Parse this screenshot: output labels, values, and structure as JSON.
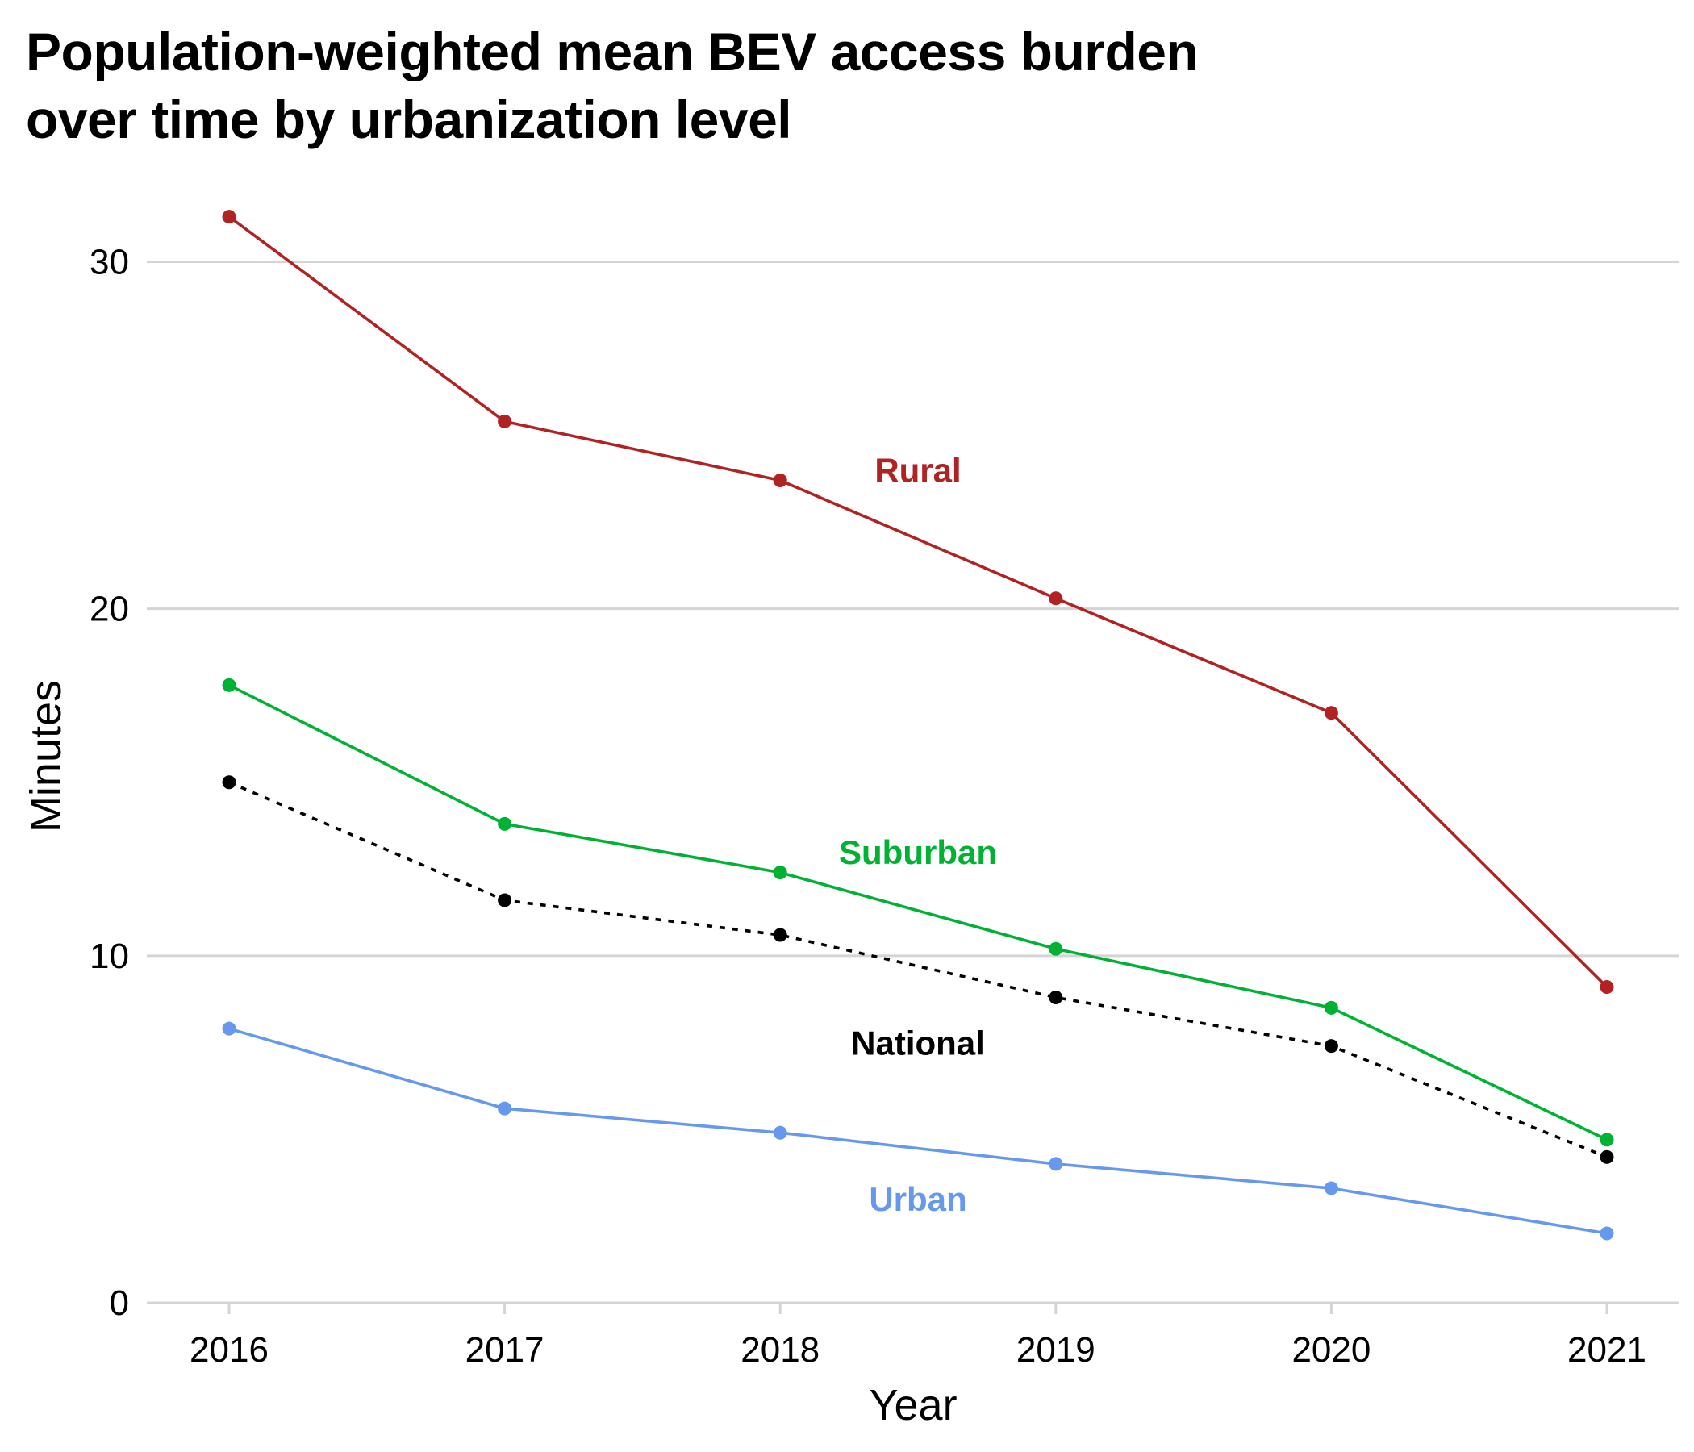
{
  "chart_data": {
    "type": "line",
    "title_lines": [
      "Population-weighted mean BEV access burden",
      "over time by urbanization level"
    ],
    "xlabel": "Year",
    "ylabel": "Minutes",
    "x": [
      2016,
      2017,
      2018,
      2019,
      2020,
      2021
    ],
    "x_tick_labels": [
      "2016",
      "2017",
      "2018",
      "2019",
      "2020",
      "2021"
    ],
    "ylim": [
      0,
      31.5
    ],
    "y_ticks": [
      0,
      10,
      20,
      30
    ],
    "y_tick_labels": [
      "0",
      "10",
      "20",
      "30"
    ],
    "grid": "horizontal",
    "legend": "direct labels inside plot",
    "series": [
      {
        "name": "Rural",
        "color": "#b22222",
        "dash": "solid",
        "values": [
          31.3,
          25.4,
          23.7,
          20.3,
          17.0,
          9.1
        ],
        "label_x": 2018.5,
        "label_y": 24.0
      },
      {
        "name": "Suburban",
        "color": "#00b233",
        "dash": "solid",
        "values": [
          17.8,
          13.8,
          12.4,
          10.2,
          8.5,
          4.7
        ],
        "label_x": 2018.5,
        "label_y": 13.0
      },
      {
        "name": "National",
        "color": "#000000",
        "dash": "dotted",
        "values": [
          15.0,
          11.6,
          10.6,
          8.8,
          7.4,
          4.2
        ],
        "label_x": 2018.5,
        "label_y": 7.5
      },
      {
        "name": "Urban",
        "color": "#6699ee",
        "dash": "solid",
        "values": [
          7.9,
          5.6,
          4.9,
          4.0,
          3.3,
          2.0
        ],
        "label_x": 2018.5,
        "label_y": 3.0
      }
    ]
  }
}
